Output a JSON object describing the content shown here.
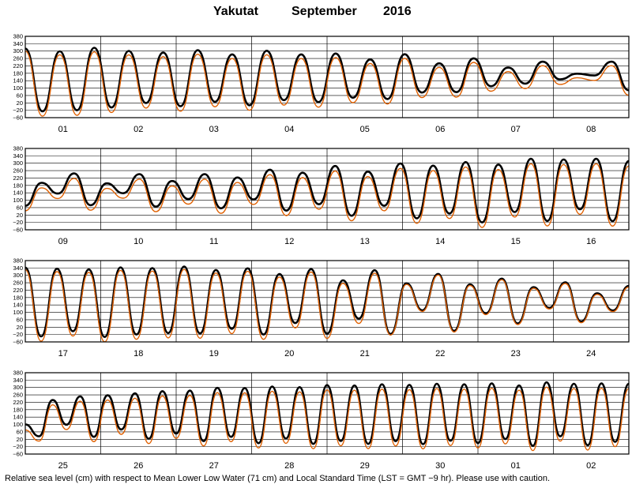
{
  "title": {
    "station": "Yakutat",
    "month": "September",
    "year": "2016"
  },
  "footer": "Relative sea level (cm) with respect to Mean Lower Low Water (71 cm) and Local Standard Time (LST = GMT −9 hr). Please use with caution.",
  "colors": {
    "observed": "#000000",
    "predicted": "#e06000",
    "grid": "#000000"
  },
  "chart_data": {
    "type": "line",
    "ylim": [
      -60,
      380
    ],
    "yticks": [
      380,
      340,
      300,
      260,
      220,
      180,
      140,
      100,
      60,
      20,
      -20,
      -60
    ],
    "ytick_labels": [
      "380",
      "340",
      "300",
      "260",
      "220",
      "180",
      "140",
      "100",
      "60",
      "20",
      "−20",
      "−60"
    ],
    "grid": true,
    "panels": [
      {
        "days": [
          "01",
          "02",
          "03",
          "04",
          "05",
          "06",
          "07",
          "08"
        ],
        "series": [
          {
            "color": "black",
            "start_level": 314,
            "extrema": [
              -26,
              299,
              -20,
              318,
              -5,
              301,
              19,
              292,
              2,
              305,
              26,
              282,
              7,
              302,
              35,
              282,
              24,
              287,
              48,
              255,
              41,
              283,
              76,
              234,
              78,
              261,
              110,
              211,
              124,
              243,
              147,
              178,
              168,
              243,
              88
            ]
          },
          {
            "color": "orange",
            "start_level": 300,
            "extrema": [
              -52,
              280,
              -47,
              296,
              -32,
              279,
              -8,
              270,
              -25,
              283,
              -1,
              260,
              -20,
              280,
              8,
              260,
              -3,
              265,
              21,
              233,
              14,
              261,
              49,
              212,
              51,
              239,
              83,
              189,
              97,
              221,
              120,
              156,
              141,
              221,
              61
            ]
          }
        ]
      },
      {
        "days": [
          "09",
          "10",
          "11",
          "12",
          "13",
          "14",
          "15",
          "16"
        ],
        "series": [
          {
            "color": "black",
            "start_level": 70,
            "extrema": [
              194,
              136,
              245,
              73,
              191,
              138,
              241,
              65,
              204,
              106,
              241,
              56,
              223,
              104,
              265,
              44,
              249,
              78,
              285,
              16,
              255,
              70,
              299,
              2,
              287,
              28,
              306,
              -20,
              293,
              36,
              324,
              -12,
              320,
              51,
              324,
              -13,
              312
            ]
          },
          {
            "color": "orange",
            "start_level": 43,
            "extrema": [
              167,
              109,
              218,
              46,
              164,
              111,
              214,
              38,
              177,
              79,
              214,
              29,
              196,
              77,
              238,
              17,
              222,
              51,
              258,
              -11,
              228,
              43,
              272,
              -25,
              260,
              1,
              279,
              -47,
              266,
              9,
              297,
              -39,
              293,
              24,
              297,
              -40,
              285
            ]
          }
        ]
      },
      {
        "days": [
          "17",
          "18",
          "19",
          "20",
          "21",
          "22",
          "23",
          "24"
        ],
        "series": [
          {
            "color": "black",
            "start_level": 342,
            "extrema": [
              -30,
              336,
              -2,
              332,
              -33,
              343,
              -20,
              339,
              -12,
              348,
              -14,
              329,
              11,
              338,
              -20,
              307,
              42,
              334,
              -15,
              273,
              66,
              328,
              -17,
              257,
              111,
              308,
              0,
              251,
              94,
              282,
              40,
              236,
              124,
              262,
              50,
              203,
              110,
              243
            ]
          },
          {
            "color": "orange",
            "start_level": 330,
            "extrema": [
              -56,
              320,
              -28,
              316,
              -59,
              327,
              -46,
              323,
              -38,
              332,
              -40,
              313,
              -15,
              322,
              -46,
              291,
              16,
              318,
              -41,
              257,
              40,
              312,
              -23,
              251,
              105,
              302,
              -6,
              245,
              88,
              276,
              34,
              230,
              118,
              256,
              44,
              197,
              104,
              237
            ]
          }
        ]
      },
      {
        "days": [
          "25",
          "26",
          "27",
          "28",
          "29",
          "30",
          "01",
          "02"
        ],
        "series": [
          {
            "color": "black",
            "start_level": 100,
            "extrema": [
              36,
              232,
              99,
              252,
              33,
              258,
              73,
              268,
              23,
              280,
              51,
              283,
              10,
              298,
              33,
              297,
              -1,
              305,
              24,
              302,
              -5,
              313,
              11,
              311,
              -5,
              317,
              10,
              314,
              -6,
              320,
              12,
              317,
              -1,
              322,
              21,
              311,
              -15,
              328,
              36,
              320,
              -12,
              322,
              6,
              320
            ]
          },
          {
            "color": "orange",
            "start_level": 70,
            "extrema": [
              10,
              206,
              73,
              226,
              7,
              232,
              47,
              242,
              -3,
              254,
              25,
              257,
              -16,
              272,
              7,
              271,
              -27,
              279,
              -2,
              276,
              -31,
              287,
              -15,
              285,
              -31,
              291,
              -16,
              288,
              -32,
              294,
              -14,
              291,
              -27,
              296,
              -5,
              285,
              -41,
              302,
              10,
              294,
              -38,
              296,
              -20,
              294
            ]
          }
        ]
      }
    ]
  }
}
